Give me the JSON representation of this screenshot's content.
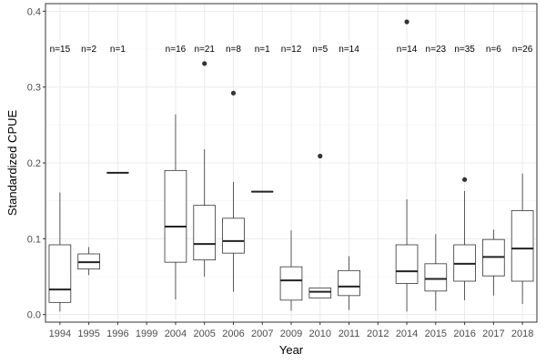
{
  "chart_data": {
    "type": "boxplot",
    "xlabel": "Year",
    "ylabel": "Standardized CPUE",
    "ylim": [
      -0.01,
      0.41
    ],
    "yticks": [
      0.0,
      0.1,
      0.2,
      0.3,
      0.4
    ],
    "ytick_labels": [
      "0.0",
      "0.1",
      "0.2",
      "0.3",
      "0.4"
    ],
    "grid": true,
    "categories": [
      "1994",
      "1995",
      "1996",
      "1999",
      "2004",
      "2005",
      "2006",
      "2007",
      "2009",
      "2010",
      "2011",
      "2012",
      "2014",
      "2015",
      "2016",
      "2017",
      "2018"
    ],
    "n_labels": [
      "n=15",
      "n=2",
      "n=1",
      "",
      "n=16",
      "n=21",
      "n=8",
      "n=1",
      "n=12",
      "n=5",
      "n=14",
      "",
      "n=14",
      "n=23",
      "n=35",
      "n=6",
      "n=26"
    ],
    "n_label_y": 0.35,
    "boxes": [
      {
        "year": "1994",
        "min": 0.004,
        "q1": 0.016,
        "median": 0.033,
        "q3": 0.092,
        "max": 0.161,
        "outliers": []
      },
      {
        "year": "1995",
        "min": 0.052,
        "q1": 0.06,
        "median": 0.069,
        "q3": 0.08,
        "max": 0.089,
        "outliers": []
      },
      {
        "year": "1996",
        "min": 0.187,
        "q1": 0.187,
        "median": 0.187,
        "q3": 0.187,
        "max": 0.187,
        "outliers": []
      },
      {
        "year": "1999",
        "empty": true
      },
      {
        "year": "2004",
        "min": 0.02,
        "q1": 0.069,
        "median": 0.116,
        "q3": 0.19,
        "max": 0.264,
        "outliers": []
      },
      {
        "year": "2005",
        "min": 0.05,
        "q1": 0.072,
        "median": 0.093,
        "q3": 0.144,
        "max": 0.218,
        "outliers": [
          0.331
        ]
      },
      {
        "year": "2006",
        "min": 0.03,
        "q1": 0.081,
        "median": 0.097,
        "q3": 0.127,
        "max": 0.175,
        "outliers": [
          0.292
        ]
      },
      {
        "year": "2007",
        "min": 0.162,
        "q1": 0.162,
        "median": 0.162,
        "q3": 0.162,
        "max": 0.162,
        "outliers": []
      },
      {
        "year": "2009",
        "min": 0.005,
        "q1": 0.019,
        "median": 0.045,
        "q3": 0.063,
        "max": 0.111,
        "outliers": []
      },
      {
        "year": "2010",
        "min": 0.022,
        "q1": 0.022,
        "median": 0.03,
        "q3": 0.035,
        "max": 0.035,
        "outliers": [
          0.209
        ]
      },
      {
        "year": "2011",
        "min": 0.006,
        "q1": 0.025,
        "median": 0.037,
        "q3": 0.058,
        "max": 0.077,
        "outliers": []
      },
      {
        "year": "2012",
        "empty": true
      },
      {
        "year": "2014",
        "min": 0.004,
        "q1": 0.041,
        "median": 0.057,
        "q3": 0.092,
        "max": 0.152,
        "outliers": [
          0.386
        ]
      },
      {
        "year": "2015",
        "min": 0.005,
        "q1": 0.031,
        "median": 0.047,
        "q3": 0.067,
        "max": 0.106,
        "outliers": []
      },
      {
        "year": "2016",
        "min": 0.019,
        "q1": 0.044,
        "median": 0.067,
        "q3": 0.092,
        "max": 0.163,
        "outliers": [
          0.178
        ]
      },
      {
        "year": "2017",
        "min": 0.025,
        "q1": 0.051,
        "median": 0.076,
        "q3": 0.099,
        "max": 0.112,
        "outliers": []
      },
      {
        "year": "2018",
        "min": 0.014,
        "q1": 0.044,
        "median": 0.087,
        "q3": 0.137,
        "max": 0.186,
        "outliers": []
      }
    ]
  }
}
